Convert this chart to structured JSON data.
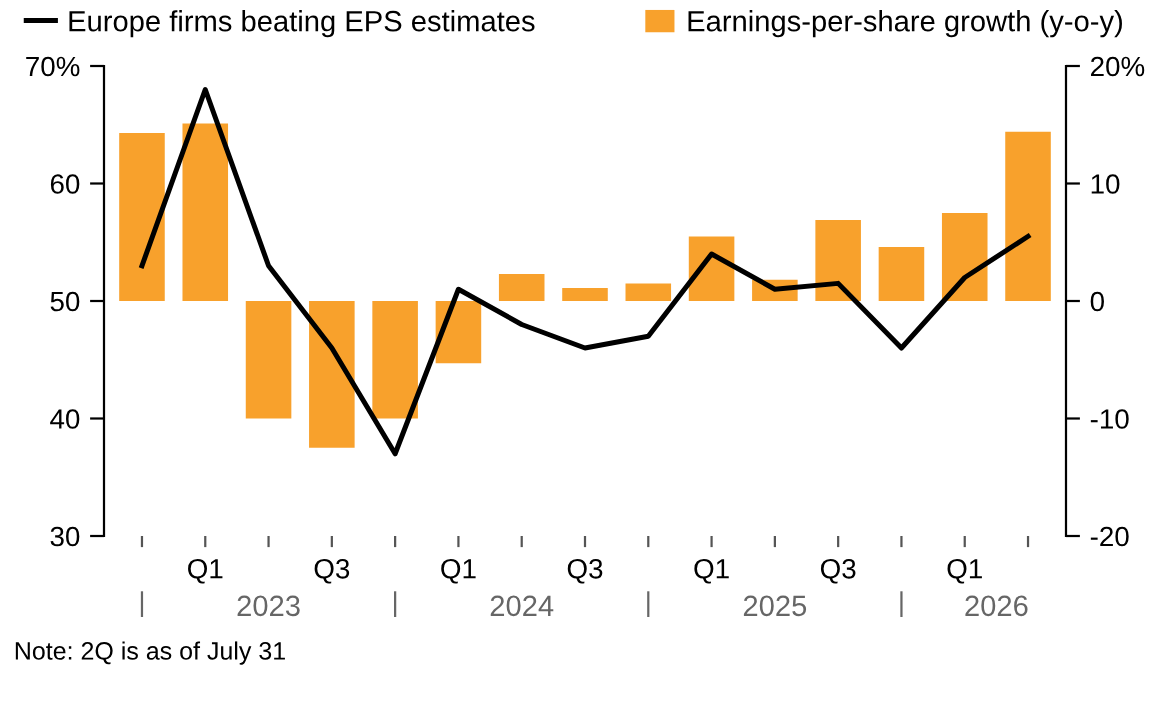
{
  "chart_data": {
    "type": "bar",
    "categories": [
      null,
      "Q1",
      null,
      "Q3",
      null,
      "Q1",
      null,
      "Q3",
      null,
      "Q1",
      null,
      "Q3",
      null,
      "Q1",
      null
    ],
    "series": [
      {
        "name": "Earnings-per-share growth (y-o-y)",
        "axis": "y2",
        "color": "#f8a12c",
        "values": [
          14.3,
          15.1,
          -10,
          -12.5,
          -10,
          -5.3,
          2.3,
          1.1,
          1.5,
          5.5,
          1.8,
          6.9,
          4.6,
          7.5,
          14.4
        ]
      },
      {
        "name": "Europe firms beating EPS estimates",
        "type": "line",
        "color": "#000000",
        "values": [
          53,
          68,
          53,
          46,
          37,
          51,
          48,
          46,
          47,
          54,
          51,
          51.5,
          46,
          52,
          55.5
        ]
      }
    ],
    "ylim": [
      30,
      70
    ],
    "yticks": [
      30,
      40,
      50,
      60,
      {
        "value": 70,
        "label": "70%"
      }
    ],
    "y2lim": [
      -20,
      20
    ],
    "y2ticks": [
      -20,
      -10,
      0,
      10,
      {
        "value": 20,
        "label": "20%"
      }
    ],
    "grid": false,
    "legend": "top",
    "annotations": [
      "2023",
      "2024",
      "2025",
      "2026",
      "Note: 2Q is as of July 31"
    ]
  }
}
